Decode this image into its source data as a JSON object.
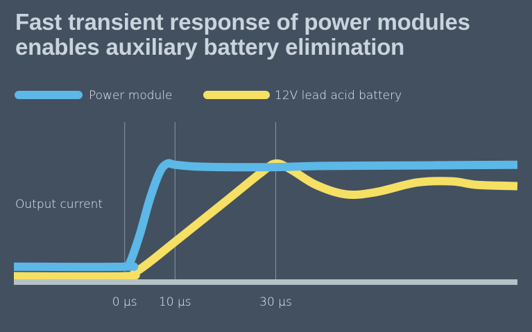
{
  "chart_data": {
    "type": "line",
    "title": [
      "Fast transient response of power modules",
      "enables auxiliary battery elimination"
    ],
    "ylabel": "Output current",
    "xlabel": "",
    "x_ticks": [
      {
        "value": 0,
        "label": "0 µs"
      },
      {
        "value": 10,
        "label": "10 µs"
      },
      {
        "value": 30,
        "label": "30 µs"
      }
    ],
    "xlim": [
      -22,
      78
    ],
    "ylim": [
      0,
      1.3
    ],
    "grid": "vertical lines at tick positions",
    "legend_position": "top",
    "series": [
      {
        "name": "Power module",
        "color": "#5cb8e6",
        "x": [
          -22,
          0,
          1,
          3,
          5,
          7,
          8.5,
          10,
          14,
          20,
          30,
          40,
          60,
          78
        ],
        "y": [
          0.13,
          0.13,
          0.16,
          0.4,
          0.7,
          0.93,
          1.0,
          0.99,
          0.975,
          0.97,
          0.97,
          0.98,
          0.985,
          0.99
        ]
      },
      {
        "name": "12V lead acid battery",
        "color": "#f6e064",
        "x": [
          -22,
          0,
          2,
          5,
          10,
          20,
          27,
          30,
          33,
          38,
          44,
          50,
          58,
          65,
          70,
          78
        ],
        "y": [
          0.05,
          0.05,
          0.08,
          0.17,
          0.34,
          0.68,
          0.92,
          1.0,
          0.95,
          0.82,
          0.74,
          0.76,
          0.84,
          0.85,
          0.82,
          0.81
        ]
      }
    ]
  }
}
